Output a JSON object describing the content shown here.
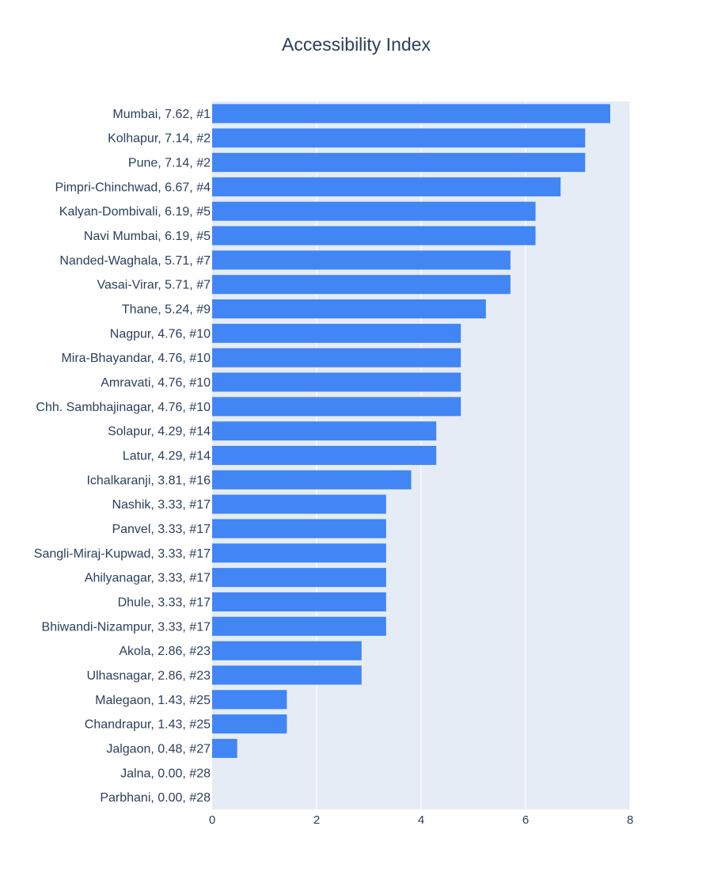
{
  "chart_data": {
    "type": "bar",
    "orientation": "horizontal",
    "title": "Accessibility Index",
    "xlabel": "",
    "ylabel": "",
    "xlim": [
      0,
      8
    ],
    "x_ticks": [
      0,
      2,
      4,
      6,
      8
    ],
    "grid": true,
    "colors": {
      "bar": "#4285f4",
      "plot_bg": "#e5ecf6",
      "grid": "#ffffff",
      "text": "#2a3f5f"
    },
    "categories": [
      "Mumbai, 7.62, #1",
      "Kolhapur, 7.14, #2",
      "Pune, 7.14, #2",
      "Pimpri-Chinchwad, 6.67, #4",
      "Kalyan-Dombivali, 6.19, #5",
      "Navi Mumbai, 6.19, #5",
      "Nanded-Waghala, 5.71, #7",
      "Vasai-Virar, 5.71, #7",
      "Thane, 5.24, #9",
      "Nagpur, 4.76, #10",
      "Mira-Bhayandar, 4.76, #10",
      "Amravati, 4.76, #10",
      "Chh. Sambhajinagar, 4.76, #10",
      "Solapur, 4.29, #14",
      "Latur, 4.29, #14",
      "Ichalkaranji, 3.81, #16",
      "Nashik, 3.33, #17",
      "Panvel, 3.33, #17",
      "Sangli-Miraj-Kupwad, 3.33, #17",
      "Ahilyanagar, 3.33, #17",
      "Dhule, 3.33, #17",
      "Bhiwandi-Nizampur, 3.33, #17",
      "Akola, 2.86, #23",
      "Ulhasnagar, 2.86, #23",
      "Malegaon, 1.43, #25",
      "Chandrapur, 1.43, #25",
      "Jalgaon, 0.48, #27",
      "Jalna, 0.00, #28",
      "Parbhani, 0.00, #28"
    ],
    "values": [
      7.62,
      7.14,
      7.14,
      6.67,
      6.19,
      6.19,
      5.71,
      5.71,
      5.24,
      4.76,
      4.76,
      4.76,
      4.76,
      4.29,
      4.29,
      3.81,
      3.33,
      3.33,
      3.33,
      3.33,
      3.33,
      3.33,
      2.86,
      2.86,
      1.43,
      1.43,
      0.48,
      0.0,
      0.0
    ]
  }
}
